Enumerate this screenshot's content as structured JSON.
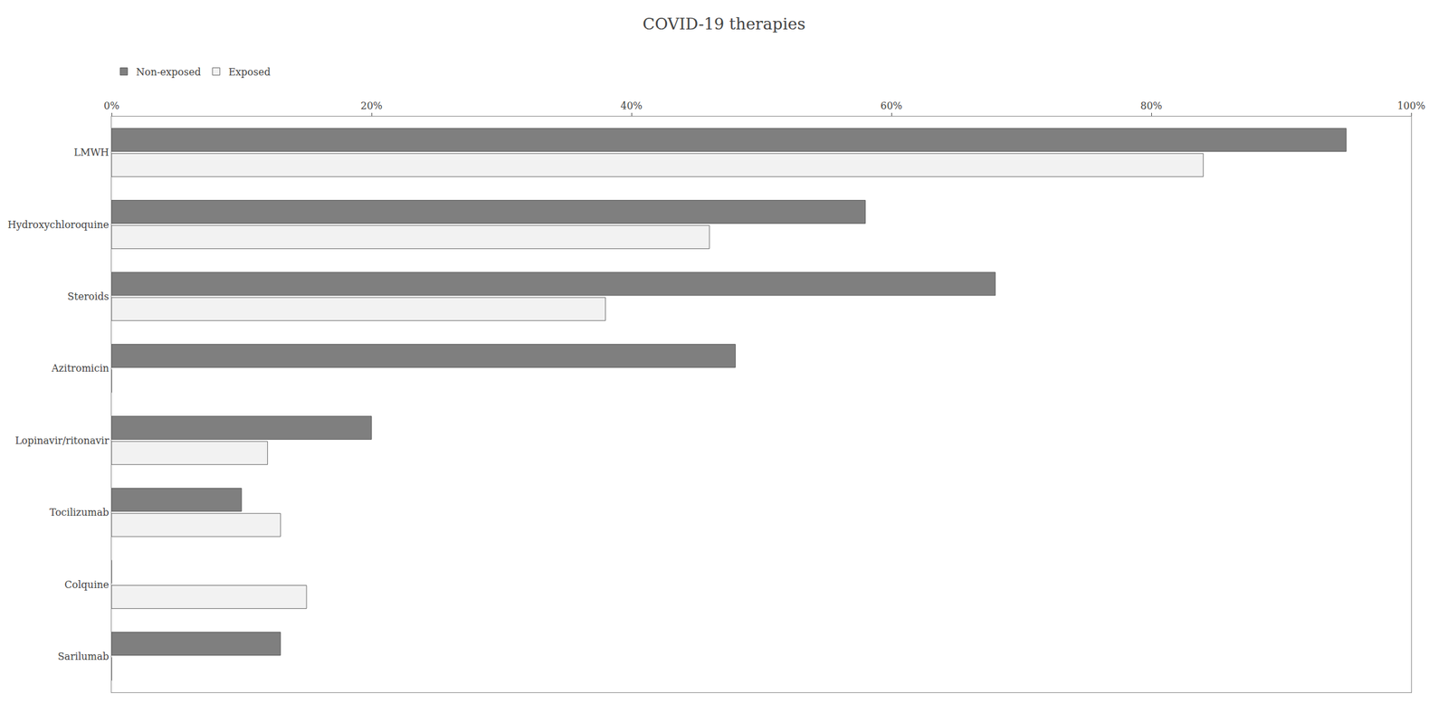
{
  "chart_data": {
    "type": "bar",
    "orientation": "horizontal",
    "title": "COVID-19 therapies",
    "categories": [
      "LMWH",
      "Hydroxychloroquine",
      "Steroids",
      "Azitromicin",
      "Lopinavir/ritonavir",
      "Tocilizumab",
      "Colquine",
      "Sarilumab"
    ],
    "series": [
      {
        "name": "Non-exposed",
        "color": "#7f7f7f",
        "values": [
          95,
          58,
          68,
          48,
          20,
          10,
          0,
          13
        ]
      },
      {
        "name": "Exposed",
        "color": "#f2f2f2",
        "values": [
          84,
          46,
          38,
          0,
          12,
          13,
          15,
          0
        ]
      }
    ],
    "xlim": [
      0,
      100
    ],
    "xticks": [
      {
        "value": 0,
        "label": "0%"
      },
      {
        "value": 20,
        "label": "20%"
      },
      {
        "value": 40,
        "label": "40%"
      },
      {
        "value": 60,
        "label": "60%"
      },
      {
        "value": 80,
        "label": "80%"
      },
      {
        "value": 100,
        "label": "100%"
      }
    ],
    "grid": false,
    "legend": "upper left"
  }
}
